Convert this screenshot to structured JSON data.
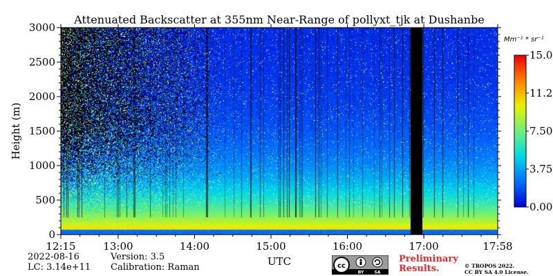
{
  "chart_data": {
    "type": "heatmap",
    "title": "Attenuated Backscatter at 355nm Near-Range of pollyxt_tjk at Dushanbe",
    "xlabel": "UTC",
    "ylabel": "Height (m)",
    "x_range_hours": [
      12.25,
      17.9667
    ],
    "x_ticks": [
      {
        "label": "12:15",
        "value": 12.25
      },
      {
        "label": "13:00",
        "value": 13.0
      },
      {
        "label": "14:00",
        "value": 14.0
      },
      {
        "label": "15:00",
        "value": 15.0
      },
      {
        "label": "16:00",
        "value": 16.0
      },
      {
        "label": "17:00",
        "value": 17.0
      },
      {
        "label": "17:58",
        "value": 17.9667
      }
    ],
    "ylim": [
      0,
      3000
    ],
    "y_ticks": [
      0,
      500,
      1000,
      1500,
      2000,
      2500,
      3000
    ],
    "colorbar": {
      "unit": "Mm⁻¹ * sr⁻¹",
      "range": [
        0.0,
        15.0
      ],
      "tick_labels": [
        "0.00",
        "3.75",
        "7.50",
        "11.25",
        "15.00"
      ],
      "tick_values": [
        0.0,
        3.75,
        7.5,
        11.25,
        15.0
      ],
      "colors": [
        "#0000d4",
        "#0070ff",
        "#00d8e8",
        "#6ef07a",
        "#e8f000",
        "#ff8000",
        "#e80000"
      ]
    },
    "missing_data_intervals_utc": [
      [
        16.82,
        16.98
      ]
    ],
    "profile_description": "high near-surface signal (0-500 m) decreasing with height; noisy above ~1500 m"
  },
  "info": {
    "date": "2022-08-16",
    "lc": "LC: 3.14e+11",
    "version": "Version: 3.5",
    "calibration": "Calibration: Raman"
  },
  "license": {
    "cc_text": "cc",
    "by_text": "BY",
    "sa_text": "SA",
    "preliminary_line1": "Preliminary",
    "preliminary_line2": "Results.",
    "copyright_line1": "© TROPOS 2022.",
    "copyright_line2": "CC BY SA 4.0 License."
  }
}
